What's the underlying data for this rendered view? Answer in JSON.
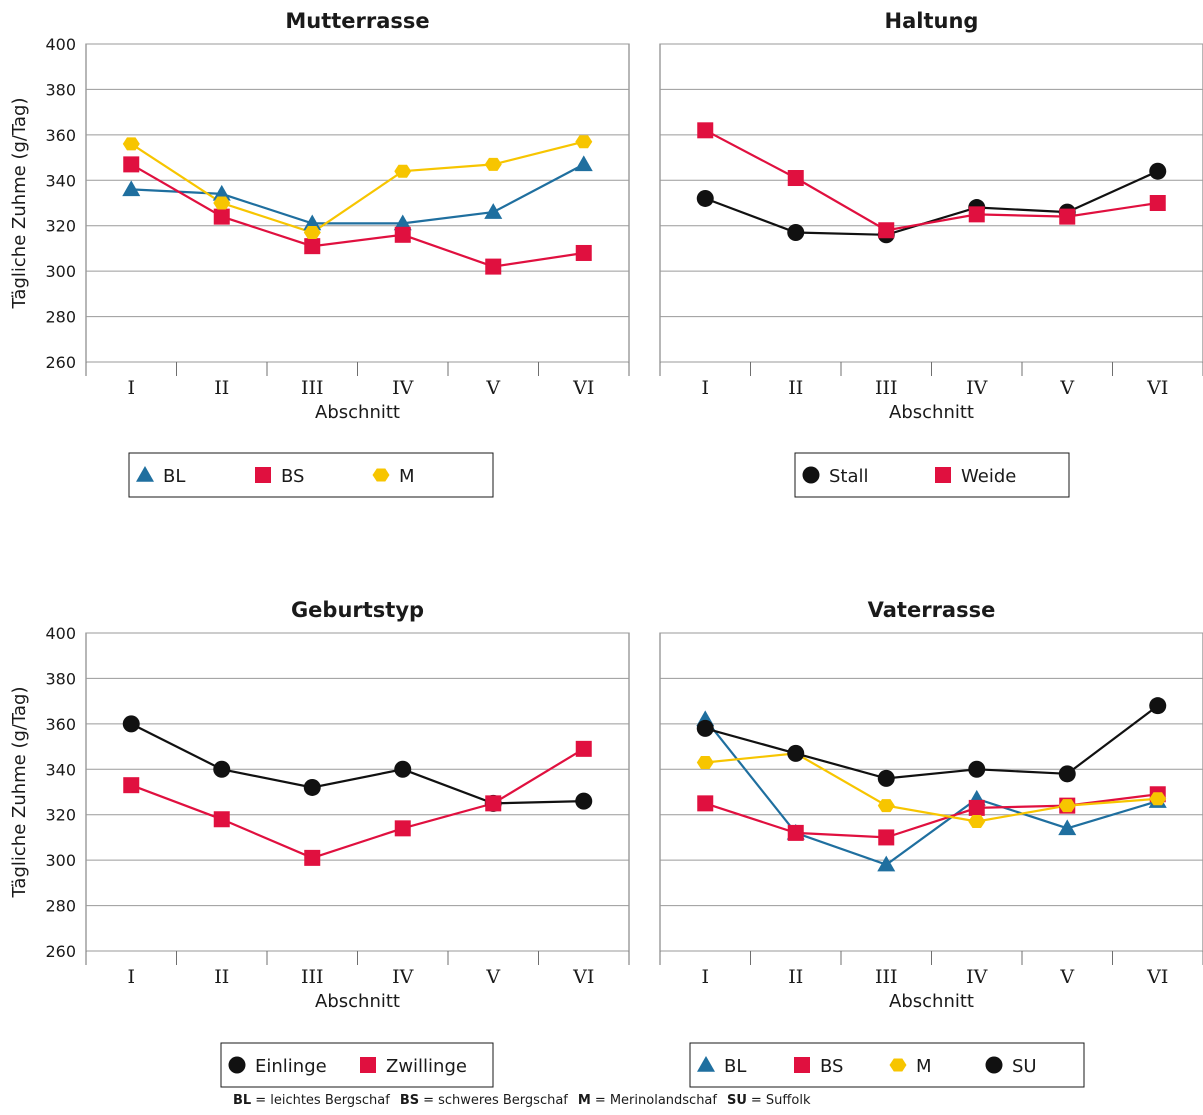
{
  "colors": {
    "BL": "#1f6f9f",
    "BS": "#e0103f",
    "M": "#f7c500",
    "black": "#111111",
    "grid": "#9a9a9a"
  },
  "chart_data": [
    {
      "type": "line",
      "title": "Mutterrasse",
      "xlabel": "Abschnitt",
      "ylabel": "Tägliche Zuhme (g/Tag)",
      "categories": [
        "I",
        "II",
        "III",
        "IV",
        "V",
        "VI"
      ],
      "ylim": [
        260,
        400
      ],
      "yticks": [
        260,
        280,
        300,
        320,
        340,
        360,
        380,
        400
      ],
      "grid": true,
      "legend": "bottom",
      "series": [
        {
          "name": "BL",
          "marker": "triangle",
          "color": "BL",
          "values": [
            336,
            334,
            321,
            321,
            326,
            347
          ]
        },
        {
          "name": "BS",
          "marker": "square",
          "color": "BS",
          "values": [
            347,
            324,
            311,
            316,
            302,
            308
          ]
        },
        {
          "name": "M",
          "marker": "hexagon",
          "color": "M",
          "values": [
            356,
            330,
            317,
            344,
            347,
            357
          ]
        }
      ]
    },
    {
      "type": "line",
      "title": "Haltung",
      "xlabel": "Abschnitt",
      "ylabel": "",
      "categories": [
        "I",
        "II",
        "III",
        "IV",
        "V",
        "VI"
      ],
      "ylim": [
        260,
        400
      ],
      "yticks": [],
      "grid": true,
      "legend": "bottom",
      "series": [
        {
          "name": "Stall",
          "marker": "circle",
          "color": "black",
          "values": [
            332,
            317,
            316,
            328,
            326,
            344
          ]
        },
        {
          "name": "Weide",
          "marker": "square",
          "color": "BS",
          "values": [
            362,
            341,
            318,
            325,
            324,
            330
          ]
        }
      ]
    },
    {
      "type": "line",
      "title": "Geburtstyp",
      "xlabel": "Abschnitt",
      "ylabel": "Tägliche Zuhme (g/Tag)",
      "categories": [
        "I",
        "II",
        "III",
        "IV",
        "V",
        "VI"
      ],
      "ylim": [
        260,
        400
      ],
      "yticks": [
        260,
        280,
        300,
        320,
        340,
        360,
        380,
        400
      ],
      "grid": true,
      "legend": "bottom",
      "series": [
        {
          "name": "Einlinge",
          "marker": "circle",
          "color": "black",
          "values": [
            360,
            340,
            332,
            340,
            325,
            326
          ]
        },
        {
          "name": "Zwillinge",
          "marker": "square",
          "color": "BS",
          "values": [
            333,
            318,
            301,
            314,
            325,
            349
          ]
        }
      ]
    },
    {
      "type": "line",
      "title": "Vaterrasse",
      "xlabel": "Abschnitt",
      "ylabel": "",
      "categories": [
        "I",
        "II",
        "III",
        "IV",
        "V",
        "VI"
      ],
      "ylim": [
        260,
        400
      ],
      "yticks": [],
      "grid": true,
      "legend": "bottom",
      "series": [
        {
          "name": "BL",
          "marker": "triangle",
          "color": "BL",
          "values": [
            362,
            312,
            298,
            327,
            314,
            326
          ]
        },
        {
          "name": "BS",
          "marker": "square",
          "color": "BS",
          "values": [
            325,
            312,
            310,
            323,
            324,
            329
          ]
        },
        {
          "name": "M",
          "marker": "hexagon",
          "color": "M",
          "values": [
            343,
            347,
            324,
            317,
            324,
            327
          ]
        },
        {
          "name": "SU",
          "marker": "circle",
          "color": "black",
          "values": [
            358,
            347,
            336,
            340,
            338,
            368
          ]
        }
      ]
    }
  ],
  "footnote": [
    {
      "abbr": "BL",
      "text": "= leichtes Bergschaf"
    },
    {
      "abbr": "BS",
      "text": "= schweres Bergschaf"
    },
    {
      "abbr": "M",
      "text": "= Merinolandschaf"
    },
    {
      "abbr": "SU",
      "text": "= Suffolk"
    }
  ]
}
